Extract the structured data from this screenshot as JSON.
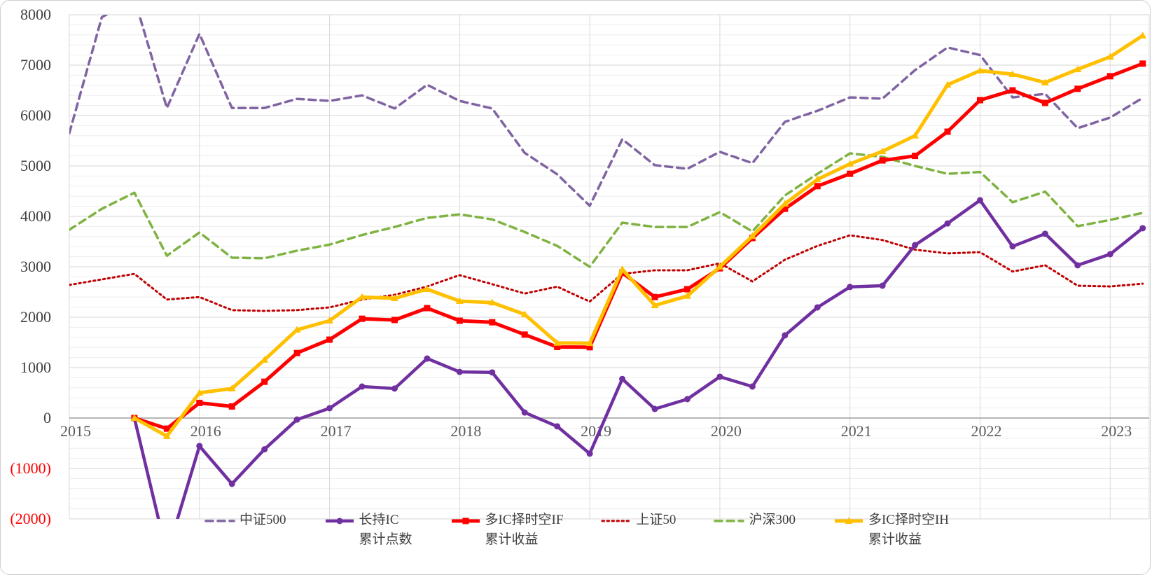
{
  "chart_data": {
    "type": "line",
    "title": "",
    "grid": {
      "minor_step": 200,
      "major_step": 1000,
      "show_vertical_year_lines": true
    },
    "x_axis": {
      "range_years": [
        2015,
        2023.3
      ],
      "tick_labels": [
        "2015",
        "2016",
        "2017",
        "2018",
        "2019",
        "2020",
        "2021",
        "2022",
        "2023"
      ],
      "tick_years": [
        2015,
        2016,
        2017,
        2018,
        2019,
        2020,
        2021,
        2022,
        2023
      ],
      "label_color": "#595959"
    },
    "y_axis": {
      "min": -2000,
      "max": 8000,
      "tick_values": [
        8000,
        7000,
        6000,
        5000,
        4000,
        3000,
        2000,
        1000,
        0,
        -1000,
        -2000
      ],
      "tick_labels": [
        "8000",
        "7000",
        "6000",
        "5000",
        "4000",
        "3000",
        "2000",
        "1000",
        "0",
        "(1000)",
        "(2000)"
      ],
      "label_color": "#404040",
      "negative_label_color": "#ff0000"
    },
    "series": [
      {
        "id": "csi500",
        "name": "中证500",
        "style": "dashed",
        "color": "#8064a2",
        "line_width": 3.5,
        "marker": "none",
        "x_start": 2015.0,
        "x_step": 0.25,
        "values": [
          5650,
          7950,
          8320,
          6150,
          7620,
          6150,
          6150,
          6330,
          6290,
          6400,
          6140,
          6610,
          6290,
          6140,
          5260,
          4835,
          4210,
          5530,
          5015,
          4945,
          5280,
          5055,
          5875,
          6095,
          6360,
          6335,
          6900,
          7350,
          7200,
          6360,
          6430,
          5750,
          5960,
          6350
        ]
      },
      {
        "id": "hs300",
        "name": "沪深300",
        "style": "dashed",
        "color": "#7fb341",
        "line_width": 3.5,
        "marker": "none",
        "x_start": 2015.0,
        "x_step": 0.25,
        "values": [
          3735,
          4150,
          4470,
          3220,
          3680,
          3180,
          3170,
          3320,
          3440,
          3630,
          3790,
          3970,
          4040,
          3940,
          3690,
          3415,
          3000,
          3875,
          3790,
          3790,
          4085,
          3700,
          4415,
          4845,
          5250,
          5180,
          5000,
          4845,
          4880,
          4280,
          4490,
          3805,
          3930,
          4070
        ]
      },
      {
        "id": "sse50",
        "name": "上证50",
        "style": "dotted",
        "color": "#c00000",
        "line_width": 3,
        "marker": "none",
        "x_start": 2015.0,
        "x_step": 0.25,
        "values": [
          2640,
          2750,
          2860,
          2350,
          2400,
          2140,
          2125,
          2140,
          2195,
          2350,
          2445,
          2610,
          2835,
          2655,
          2470,
          2605,
          2310,
          2860,
          2930,
          2930,
          3070,
          2710,
          3140,
          3415,
          3625,
          3530,
          3340,
          3265,
          3290,
          2905,
          3030,
          2625,
          2610,
          2665
        ]
      },
      {
        "id": "long-ic",
        "name": "长持IC 累计点数",
        "style": "solid",
        "color": "#7030a0",
        "line_width": 4.5,
        "marker": "circle",
        "x_start": 2015.5,
        "x_step": 0.25,
        "values": [
          0,
          -2700,
          -555,
          -1305,
          -620,
          -30,
          195,
          625,
          585,
          1180,
          915,
          905,
          110,
          -165,
          -705,
          775,
          180,
          375,
          820,
          625,
          1640,
          2195,
          2600,
          2625,
          3430,
          3860,
          4320,
          3405,
          3655,
          3030,
          3250,
          3765
        ]
      },
      {
        "id": "ic-if",
        "name": "多IC择时空IF 累计收益",
        "style": "solid",
        "color": "#ff0000",
        "line_width": 5,
        "marker": "square",
        "x_start": 2015.5,
        "x_step": 0.25,
        "values": [
          0,
          -210,
          300,
          230,
          720,
          1290,
          1555,
          1970,
          1945,
          2180,
          1930,
          1900,
          1655,
          1410,
          1405,
          2880,
          2400,
          2555,
          2970,
          3570,
          4150,
          4600,
          4845,
          5110,
          5200,
          5680,
          6305,
          6500,
          6250,
          6530,
          6780,
          7030
        ]
      },
      {
        "id": "ic-ih",
        "name": "多IC择时空IH 累计收益",
        "style": "solid",
        "color": "#ffc000",
        "line_width": 5,
        "marker": "triangle",
        "x_start": 2015.5,
        "x_step": 0.25,
        "values": [
          0,
          -360,
          500,
          585,
          1155,
          1750,
          1930,
          2400,
          2375,
          2555,
          2320,
          2290,
          2055,
          1490,
          1485,
          2950,
          2235,
          2420,
          3000,
          3610,
          4250,
          4735,
          5040,
          5290,
          5600,
          6610,
          6890,
          6820,
          6655,
          6915,
          7165,
          7585
        ]
      }
    ],
    "legend": {
      "position": "bottom",
      "items": [
        {
          "series": "csi500",
          "lines": [
            "中证500"
          ]
        },
        {
          "series": "long-ic",
          "lines": [
            "长持IC",
            "累计点数"
          ]
        },
        {
          "series": "ic-if",
          "lines": [
            "多IC择时空IF",
            "累计收益"
          ]
        },
        {
          "series": "sse50",
          "lines": [
            "上证50"
          ]
        },
        {
          "series": "hs300",
          "lines": [
            "沪深300"
          ]
        },
        {
          "series": "ic-ih",
          "lines": [
            "多IC择时空IH",
            "累计收益"
          ]
        }
      ]
    }
  }
}
